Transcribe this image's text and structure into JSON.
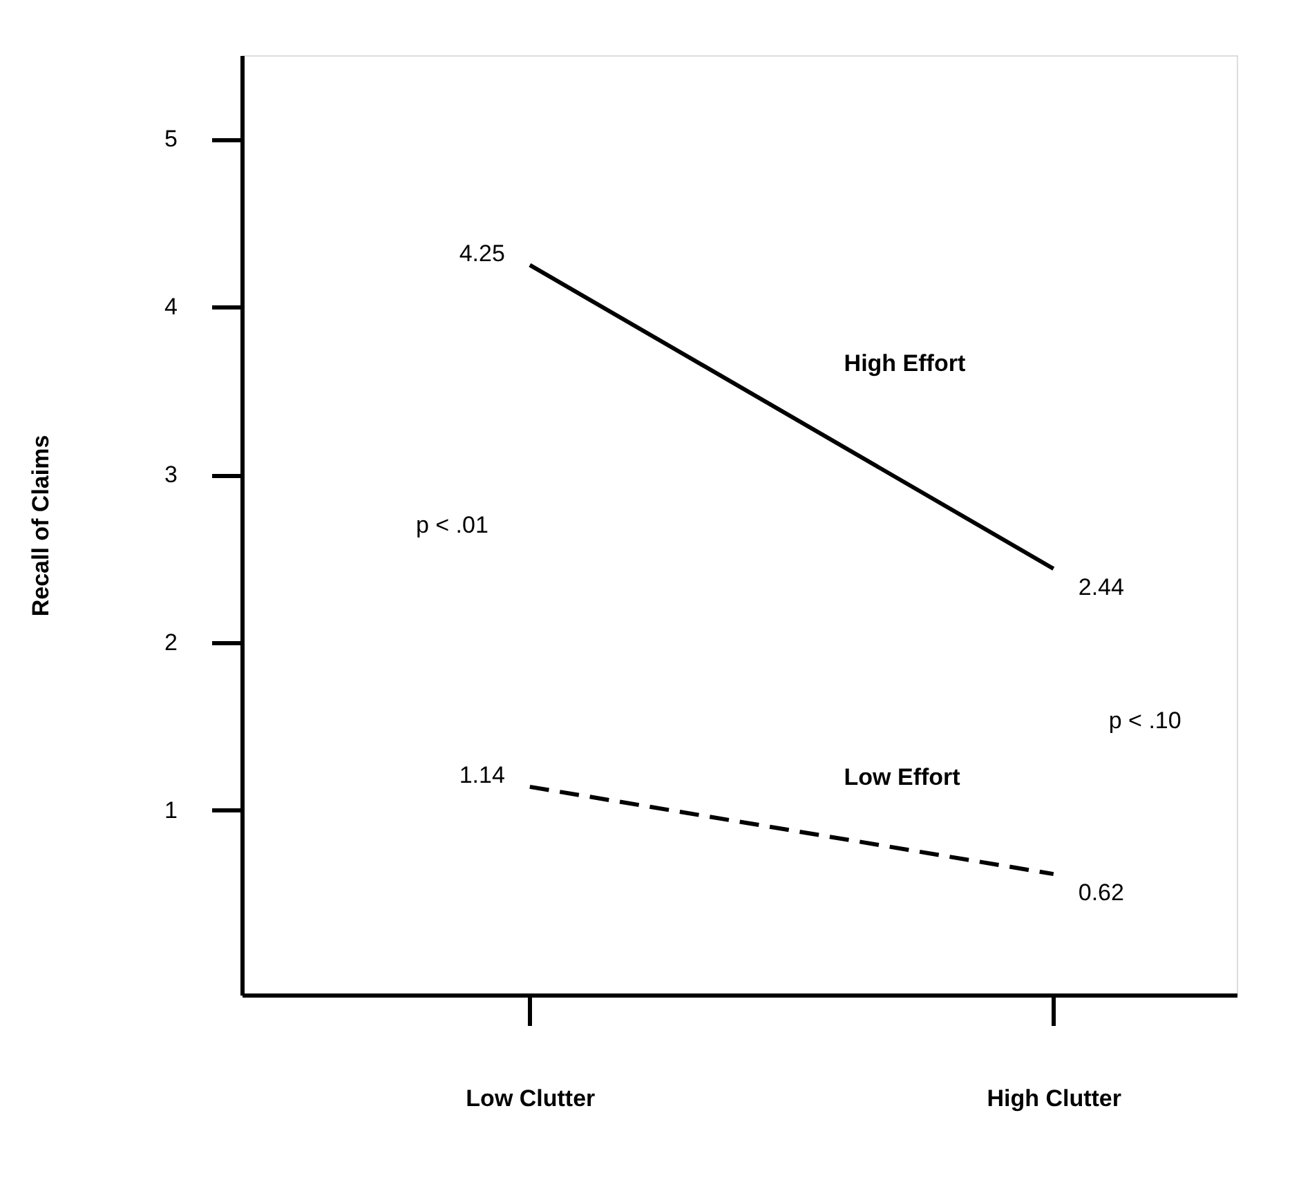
{
  "chart_data": {
    "type": "line",
    "ylabel": "Recall of Claims",
    "categories": [
      "Low Clutter",
      "High Clutter"
    ],
    "series": [
      {
        "name": "High Effort",
        "color": "#000000",
        "values": [
          4.25,
          2.44
        ],
        "line_style": "solid"
      },
      {
        "name": "Low Effort",
        "color": "#000000",
        "values": [
          1.14,
          0.62
        ],
        "line_style": "dashed"
      }
    ],
    "ylim": [
      -0.1,
      5.5
    ],
    "yticks": [
      1,
      2,
      3,
      4,
      5
    ],
    "grid": false,
    "legend": false,
    "marker": "none",
    "data_labels": true,
    "annotations": [
      "p < .01",
      "p < .10"
    ]
  }
}
